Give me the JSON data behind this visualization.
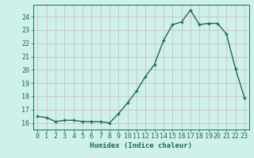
{
  "x": [
    0,
    1,
    2,
    3,
    4,
    5,
    6,
    7,
    8,
    9,
    10,
    11,
    12,
    13,
    14,
    15,
    16,
    17,
    18,
    19,
    20,
    21,
    22,
    23
  ],
  "y": [
    16.5,
    16.4,
    16.1,
    16.2,
    16.2,
    16.1,
    16.1,
    16.1,
    16.0,
    16.7,
    17.5,
    18.4,
    19.5,
    20.4,
    22.2,
    23.4,
    23.6,
    24.5,
    23.4,
    23.5,
    23.5,
    22.7,
    20.1,
    17.9
  ],
  "line_color": "#1a6b5a",
  "marker": "+",
  "marker_size": 3.5,
  "marker_edge_width": 1.0,
  "line_width": 1.0,
  "bg_color": "#cff0eb",
  "grid_color_minor": "#b0ddd8",
  "grid_color_major": "#c9b8b8",
  "xlabel": "Humidex (Indice chaleur)",
  "xlabel_fontsize": 6.5,
  "tick_fontsize": 6,
  "ylim": [
    15.5,
    24.9
  ],
  "xlim": [
    -0.5,
    23.5
  ],
  "yticks": [
    16,
    17,
    18,
    19,
    20,
    21,
    22,
    23,
    24
  ],
  "xticks": [
    0,
    1,
    2,
    3,
    4,
    5,
    6,
    7,
    8,
    9,
    10,
    11,
    12,
    13,
    14,
    15,
    16,
    17,
    18,
    19,
    20,
    21,
    22,
    23
  ],
  "tick_color": "#1a6b5a",
  "label_color": "#1a6b5a"
}
